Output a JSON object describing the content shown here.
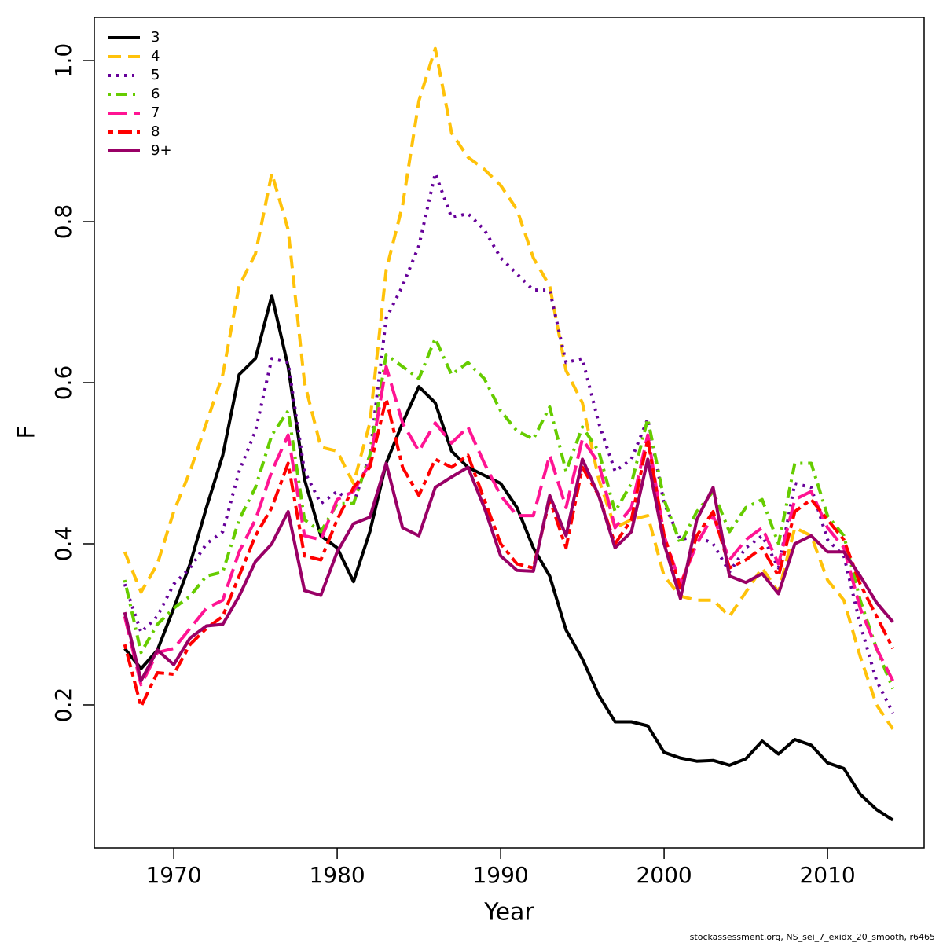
{
  "chart_data": {
    "type": "line",
    "x_label": "Year",
    "y_label": "F",
    "footnote": "stockassessment.org, NS_sei_7_exidx_20_smooth, r6465",
    "x": [
      1967,
      1968,
      1969,
      1970,
      1971,
      1972,
      1973,
      1974,
      1975,
      1976,
      1977,
      1978,
      1979,
      1980,
      1981,
      1982,
      1983,
      1984,
      1985,
      1986,
      1987,
      1988,
      1989,
      1990,
      1991,
      1992,
      1993,
      1994,
      1995,
      1996,
      1997,
      1998,
      1999,
      2000,
      2001,
      2002,
      2003,
      2004,
      2005,
      2006,
      2007,
      2008,
      2009,
      2010,
      2011,
      2012,
      2013,
      2014
    ],
    "xlim": [
      1965.14,
      2015.91
    ],
    "xticks": [
      1970,
      1980,
      1990,
      2000,
      2010
    ],
    "ylim": [
      0.0224,
      1.0537
    ],
    "yticks": [
      0.2,
      0.4,
      0.6,
      0.8,
      {
        "value": 1,
        "label": "1.0"
      }
    ],
    "legend": "top-left",
    "grid": false,
    "series": [
      {
        "name": "3",
        "color": "#000000",
        "values": [
          0.27,
          0.245,
          0.268,
          0.32,
          0.375,
          0.445,
          0.51,
          0.61,
          0.63,
          0.708,
          0.62,
          0.48,
          0.41,
          0.395,
          0.353,
          0.415,
          0.5,
          0.55,
          0.595,
          0.575,
          0.515,
          0.495,
          0.485,
          0.475,
          0.445,
          0.395,
          0.36,
          0.293,
          0.257,
          0.212,
          0.179,
          0.179,
          0.174,
          0.141,
          0.134,
          0.13,
          0.131,
          0.125,
          0.133,
          0.155,
          0.139,
          0.157,
          0.15,
          0.128,
          0.121,
          0.089,
          0.07,
          0.057
        ]
      },
      {
        "name": "4",
        "color": "#ffc20a",
        "values": [
          0.39,
          0.34,
          0.375,
          0.44,
          0.49,
          0.55,
          0.61,
          0.72,
          0.76,
          0.86,
          0.79,
          0.6,
          0.52,
          0.515,
          0.475,
          0.55,
          0.74,
          0.82,
          0.95,
          1.015,
          0.91,
          0.88,
          0.865,
          0.845,
          0.815,
          0.755,
          0.72,
          0.615,
          0.575,
          0.48,
          0.42,
          0.43,
          0.435,
          0.36,
          0.335,
          0.33,
          0.33,
          0.31,
          0.34,
          0.37,
          0.34,
          0.42,
          0.41,
          0.355,
          0.33,
          0.26,
          0.2,
          0.17
        ]
      },
      {
        "name": "5",
        "color": "#660099",
        "values": [
          0.35,
          0.29,
          0.31,
          0.35,
          0.37,
          0.4,
          0.415,
          0.49,
          0.54,
          0.63,
          0.625,
          0.49,
          0.45,
          0.465,
          0.45,
          0.51,
          0.68,
          0.72,
          0.77,
          0.86,
          0.805,
          0.81,
          0.79,
          0.755,
          0.735,
          0.715,
          0.715,
          0.625,
          0.63,
          0.55,
          0.49,
          0.505,
          0.555,
          0.45,
          0.405,
          0.41,
          0.4,
          0.365,
          0.395,
          0.41,
          0.37,
          0.475,
          0.47,
          0.405,
          0.385,
          0.3,
          0.23,
          0.19
        ]
      },
      {
        "name": "6",
        "color": "#66cc00",
        "values": [
          0.355,
          0.265,
          0.3,
          0.32,
          0.335,
          0.36,
          0.365,
          0.43,
          0.47,
          0.535,
          0.565,
          0.43,
          0.415,
          0.45,
          0.45,
          0.51,
          0.635,
          0.62,
          0.605,
          0.655,
          0.61,
          0.625,
          0.605,
          0.565,
          0.54,
          0.53,
          0.57,
          0.49,
          0.545,
          0.515,
          0.44,
          0.475,
          0.555,
          0.455,
          0.4,
          0.44,
          0.465,
          0.415,
          0.445,
          0.455,
          0.4,
          0.5,
          0.5,
          0.435,
          0.41,
          0.33,
          0.27,
          0.22
        ]
      },
      {
        "name": "7",
        "color": "#ff1493",
        "values": [
          0.31,
          0.225,
          0.265,
          0.27,
          0.295,
          0.32,
          0.33,
          0.39,
          0.43,
          0.49,
          0.535,
          0.41,
          0.405,
          0.455,
          0.465,
          0.5,
          0.62,
          0.55,
          0.515,
          0.55,
          0.525,
          0.545,
          0.5,
          0.46,
          0.435,
          0.435,
          0.51,
          0.445,
          0.53,
          0.5,
          0.42,
          0.445,
          0.535,
          0.41,
          0.35,
          0.4,
          0.435,
          0.38,
          0.405,
          0.42,
          0.375,
          0.455,
          0.465,
          0.42,
          0.395,
          0.32,
          0.27,
          0.23
        ]
      },
      {
        "name": "8",
        "color": "#ff0000",
        "values": [
          0.275,
          0.198,
          0.24,
          0.238,
          0.275,
          0.295,
          0.31,
          0.36,
          0.41,
          0.445,
          0.5,
          0.385,
          0.38,
          0.43,
          0.47,
          0.495,
          0.58,
          0.495,
          0.46,
          0.505,
          0.495,
          0.51,
          0.455,
          0.4,
          0.375,
          0.37,
          0.455,
          0.395,
          0.495,
          0.46,
          0.4,
          0.43,
          0.53,
          0.41,
          0.345,
          0.41,
          0.44,
          0.37,
          0.38,
          0.395,
          0.36,
          0.44,
          0.455,
          0.43,
          0.405,
          0.35,
          0.31,
          0.27
        ]
      },
      {
        "name": "9+",
        "color": "#990066",
        "values": [
          0.315,
          0.23,
          0.268,
          0.25,
          0.283,
          0.298,
          0.3,
          0.335,
          0.378,
          0.4,
          0.44,
          0.342,
          0.336,
          0.39,
          0.425,
          0.433,
          0.5,
          0.42,
          0.41,
          0.47,
          0.483,
          0.495,
          0.445,
          0.385,
          0.367,
          0.366,
          0.46,
          0.41,
          0.505,
          0.46,
          0.395,
          0.415,
          0.505,
          0.4,
          0.332,
          0.43,
          0.47,
          0.36,
          0.352,
          0.363,
          0.338,
          0.4,
          0.41,
          0.39,
          0.39,
          0.36,
          0.327,
          0.303
        ]
      }
    ]
  }
}
